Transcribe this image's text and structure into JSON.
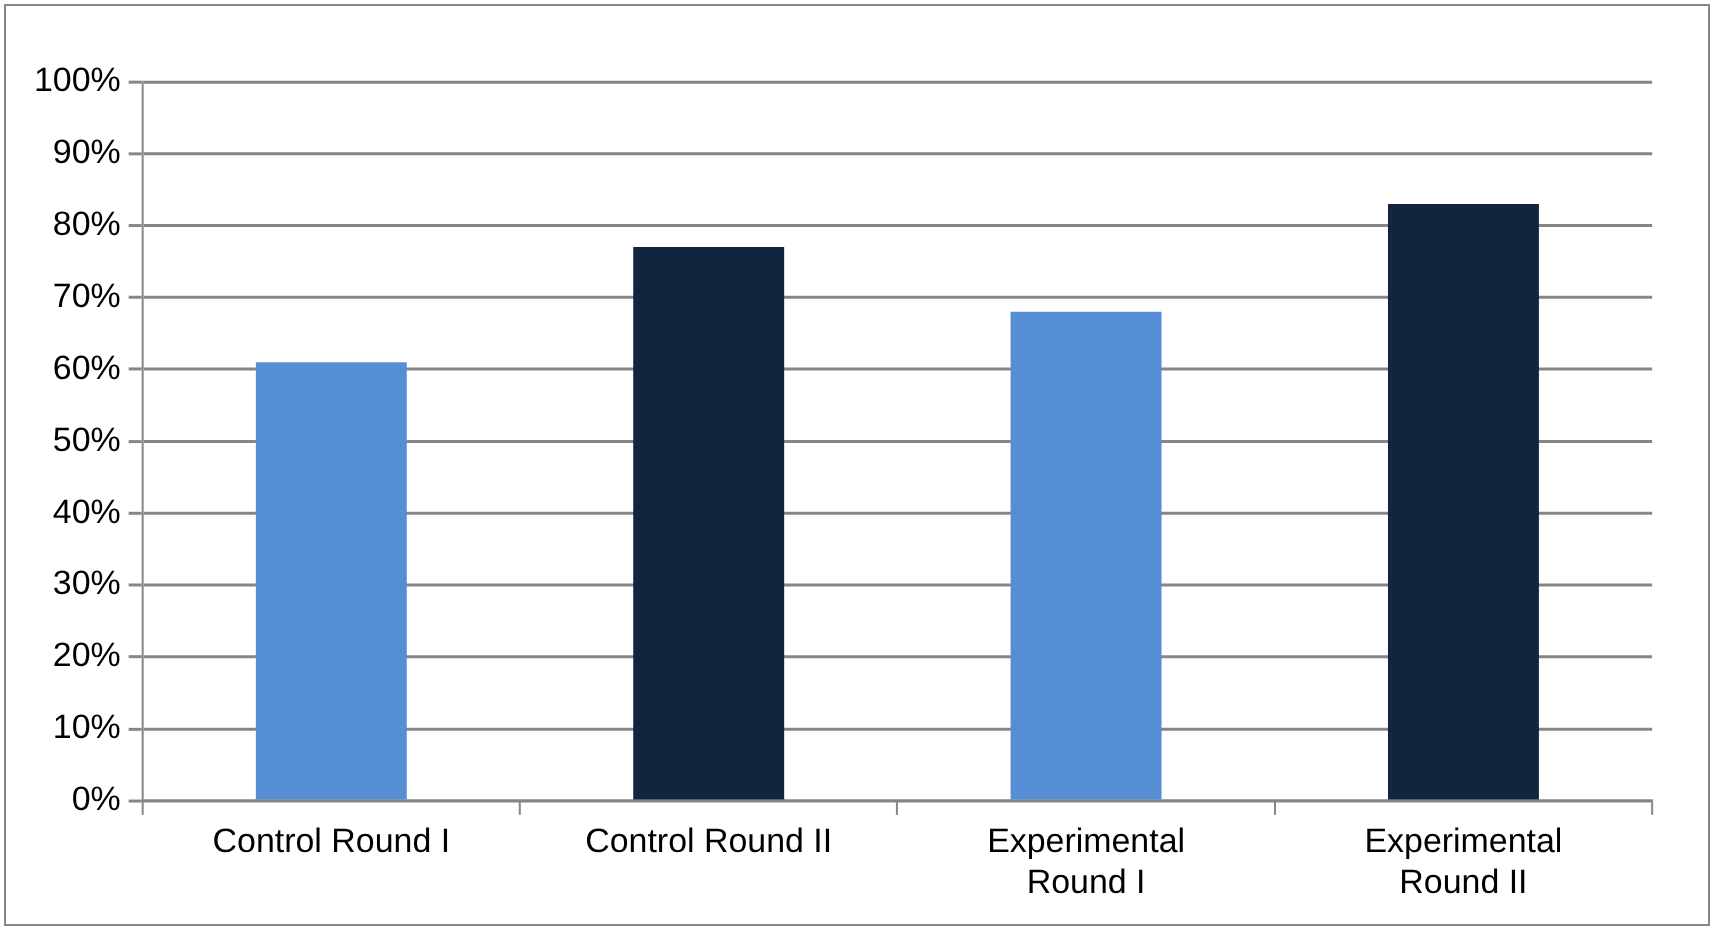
{
  "chart_data": {
    "type": "bar",
    "categories": [
      "Control Round I",
      "Control Round II",
      "Experimental Round I",
      "Experimental Round II"
    ],
    "values": [
      0.61,
      0.77,
      0.68,
      0.83
    ],
    "colors": [
      "#558ed5",
      "#12253f",
      "#558ed5",
      "#12253f"
    ],
    "ylim": [
      0,
      1
    ],
    "yticks": [
      {
        "value": 0,
        "label": "0%"
      },
      {
        "value": 0.1,
        "label": "10%"
      },
      {
        "value": 0.2,
        "label": "20%"
      },
      {
        "value": 0.3,
        "label": "30%"
      },
      {
        "value": 0.4,
        "label": "40%"
      },
      {
        "value": 0.5,
        "label": "50%"
      },
      {
        "value": 0.6,
        "label": "60%"
      },
      {
        "value": 0.7,
        "label": "70%"
      },
      {
        "value": 0.8,
        "label": "80%"
      },
      {
        "value": 0.9,
        "label": "90%"
      },
      {
        "value": 1,
        "label": "100%"
      }
    ],
    "grid": "y",
    "legend": false
  }
}
